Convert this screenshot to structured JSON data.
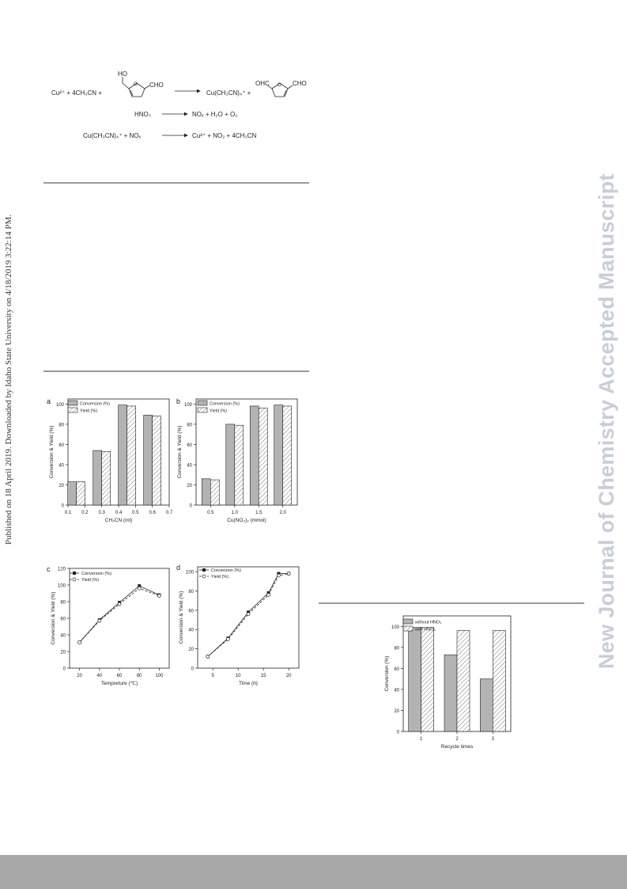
{
  "side_note": "Published on 18 April 2019. Downloaded by Idaho State University on 4/18/2019 3:22:14 PM.",
  "watermark": "New Journal of Chemistry Accepted Manuscript",
  "scheme": {
    "row1": {
      "left": "Cu²⁺ + 4CH₃CN +",
      "sub_ho": "HO",
      "sub_cho": "CHO",
      "product": "Cu(CH₃CN)₄⁺ +",
      "ohc": "OHC",
      "cho2": "CHO"
    },
    "row2": {
      "left": "HNO₃",
      "right": "NOₓ + H₂O + O₂"
    },
    "row3": {
      "left": "Cu(CH₃CN)₄⁺ + NOₓ",
      "right": "Cu²⁺ + NO₂ + 4CH₃CN"
    }
  },
  "legend_labels": {
    "conversion": "Conversion (%)",
    "yield": "Yield (%)",
    "without": "without HNO₃",
    "with": "with HNO₃"
  },
  "panel_labels": {
    "a": "a",
    "b": "b",
    "c": "c",
    "d": "d"
  },
  "chart_data": [
    {
      "id": "a",
      "type": "bar",
      "xlabel": "CH₃CN (ml)",
      "ylabel": "Conversion & Yield (%)",
      "x_ticks": [
        "0.1",
        "0.2",
        "0.3",
        "0.4",
        "0.5",
        "0.6",
        "0.7"
      ],
      "y_ticks": [
        "0",
        "20",
        "40",
        "60",
        "80",
        "100"
      ],
      "xlim": [
        0.1,
        0.7
      ],
      "ylim": [
        0,
        105
      ],
      "categories": [
        0.15,
        0.3,
        0.45,
        0.6
      ],
      "series": [
        {
          "name": "Conversion (%)",
          "values": [
            23,
            54,
            99,
            89
          ]
        },
        {
          "name": "Yield (%)",
          "values": [
            23,
            53,
            98,
            88
          ]
        }
      ]
    },
    {
      "id": "b",
      "type": "bar",
      "xlabel": "Cu(NO₃)₂ (mmol)",
      "ylabel": "Conversion & Yield (%)",
      "x_ticks": [
        "0.5",
        "1.0",
        "1.5",
        "2.0"
      ],
      "y_ticks": [
        "0",
        "20",
        "40",
        "60",
        "80",
        "100"
      ],
      "xlim": [
        0.2,
        2.3
      ],
      "ylim": [
        0,
        105
      ],
      "categories": [
        0.5,
        1.0,
        1.5,
        2.0
      ],
      "series": [
        {
          "name": "Conversion (%)",
          "values": [
            26,
            80,
            98,
            99
          ]
        },
        {
          "name": "Yield (%)",
          "values": [
            25,
            79,
            96,
            98
          ]
        }
      ]
    },
    {
      "id": "c",
      "type": "line",
      "xlabel": "Tempreture (℃)",
      "ylabel": "Conversion & Yield (%)",
      "x_ticks": [
        "20",
        "40",
        "60",
        "80",
        "100"
      ],
      "y_ticks": [
        "0",
        "20",
        "40",
        "60",
        "80",
        "100",
        "120"
      ],
      "xlim": [
        10,
        110
      ],
      "ylim": [
        0,
        120
      ],
      "x": [
        20,
        40,
        60,
        80,
        100
      ],
      "series": [
        {
          "name": "Conversion (%)",
          "values": [
            31,
            58,
            79,
            99,
            88
          ]
        },
        {
          "name": "Yield (%)",
          "values": [
            31,
            57,
            77,
            96,
            87
          ]
        }
      ]
    },
    {
      "id": "d",
      "type": "line",
      "xlabel": "Time (h)",
      "ylabel": "Conversion & Yield (%)",
      "x_ticks": [
        "5",
        "10",
        "15",
        "20"
      ],
      "y_ticks": [
        "0",
        "20",
        "40",
        "60",
        "80",
        "100"
      ],
      "xlim": [
        2,
        22
      ],
      "ylim": [
        0,
        105
      ],
      "x": [
        4,
        8,
        12,
        16,
        18,
        20
      ],
      "series": [
        {
          "name": "Conversion (%)",
          "values": [
            12,
            31,
            58,
            78,
            98,
            98
          ]
        },
        {
          "name": "Yield (%)",
          "values": [
            12,
            30,
            56,
            76,
            96,
            98
          ]
        }
      ]
    },
    {
      "id": "e",
      "type": "bar",
      "xlabel": "Recycle times",
      "ylabel": "Conversion (%)",
      "x_ticks": [
        "1",
        "2",
        "3"
      ],
      "y_ticks": [
        "0",
        "20",
        "40",
        "60",
        "80",
        "100"
      ],
      "xlim": [
        0.5,
        3.5
      ],
      "ylim": [
        0,
        110
      ],
      "categories": [
        1,
        2,
        3
      ],
      "series": [
        {
          "name": "without HNO₃",
          "values": [
            99,
            73,
            50
          ]
        },
        {
          "name": "with HNO₃",
          "values": [
            99,
            96,
            96
          ]
        }
      ]
    }
  ]
}
